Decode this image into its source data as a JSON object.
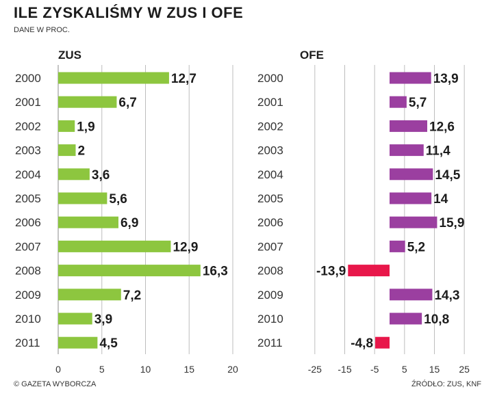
{
  "title": "ILE ZYSKALIŚMY W ZUS I OFE",
  "subtitle": "DANE W PROC.",
  "credit": "© GAZETA WYBORCZA",
  "source": "ŹRÓDŁO: ZUS, KNF",
  "colors": {
    "zus": "#8dc63f",
    "ofe_positive": "#9b3fa0",
    "ofe_negative": "#e8174a",
    "grid": "#bdbdbd"
  },
  "chart_data": [
    {
      "type": "bar",
      "orientation": "horizontal",
      "title": "ZUS",
      "categories": [
        "2000",
        "2001",
        "2002",
        "2003",
        "2004",
        "2005",
        "2006",
        "2007",
        "2008",
        "2009",
        "2010",
        "2011"
      ],
      "values": [
        12.7,
        6.7,
        1.9,
        2,
        3.6,
        5.6,
        6.9,
        12.9,
        16.3,
        7.2,
        3.9,
        4.5
      ],
      "value_labels": [
        "12,7",
        "6,7",
        "1,9",
        "2",
        "3,6",
        "5,6",
        "6,9",
        "12,9",
        "16,3",
        "7,2",
        "3,9",
        "4,5"
      ],
      "xlim": [
        0,
        20
      ],
      "xticks": [
        0,
        5,
        10,
        15,
        20
      ],
      "xtick_labels": [
        "0",
        "5",
        "10",
        "15",
        "20"
      ],
      "grid": true
    },
    {
      "type": "bar",
      "orientation": "horizontal",
      "title": "OFE",
      "categories": [
        "2000",
        "2001",
        "2002",
        "2003",
        "2004",
        "2005",
        "2006",
        "2007",
        "2008",
        "2009",
        "2010",
        "2011"
      ],
      "values": [
        13.9,
        5.7,
        12.6,
        11.4,
        14.5,
        14,
        15.9,
        5.2,
        -13.9,
        14.3,
        10.8,
        -4.8
      ],
      "value_labels": [
        "13,9",
        "5,7",
        "12,6",
        "11,4",
        "14,5",
        "14",
        "15,9",
        "5,2",
        "-13,9",
        "14,3",
        "10,8",
        "-4,8"
      ],
      "xlim": [
        -30,
        30
      ],
      "xticks": [
        -25,
        -15,
        -5,
        5,
        15,
        25
      ],
      "xtick_labels": [
        "-25",
        "-15",
        "-5",
        "5",
        "15",
        "25"
      ],
      "grid": true
    }
  ]
}
